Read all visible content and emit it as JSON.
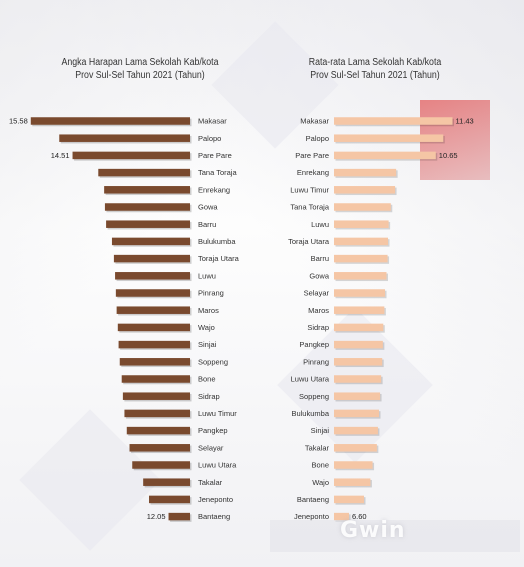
{
  "colors": {
    "left_bar": "#7a4a2e",
    "right_bar": "#f5c6a5",
    "text": "#333333"
  },
  "chart_data": [
    {
      "type": "bar",
      "orientation": "horizontal",
      "title_line1": "Angka Harapan Lama Sekolah Kab/kota",
      "title_line2": "Prov Sul-Sel Tahun 2021 (Tahun)",
      "categories": [
        "Makasar",
        "Palopo",
        "Pare Pare",
        "Tana Toraja",
        "Enrekang",
        "Gowa",
        "Barru",
        "Bulukumba",
        "Toraja Utara",
        "Luwu",
        "Pinrang",
        "Maros",
        "Wajo",
        "Sinjai",
        "Soppeng",
        "Bone",
        "Sidrap",
        "Luwu Timur",
        "Pangkep",
        "Selayar",
        "Luwu Utara",
        "Takalar",
        "Jeneponto",
        "Bantaeng"
      ],
      "values": [
        15.58,
        14.85,
        14.51,
        13.85,
        13.7,
        13.68,
        13.65,
        13.5,
        13.45,
        13.42,
        13.4,
        13.38,
        13.35,
        13.33,
        13.3,
        13.25,
        13.22,
        13.18,
        13.12,
        13.05,
        12.98,
        12.7,
        12.55,
        12.05
      ],
      "data_labels": {
        "Makasar": "15.58",
        "Pare Pare": "14.51",
        "Bantaeng": "12.05"
      },
      "xlim": [
        11.5,
        15.6
      ]
    },
    {
      "type": "bar",
      "orientation": "horizontal",
      "title_line1": "Rata-rata Lama Sekolah Kab/kota",
      "title_line2": "Prov Sul-Sel Tahun 2021 (Tahun)",
      "categories": [
        "Makasar",
        "Palopo",
        "Pare Pare",
        "Enrekang",
        "Luwu Timur",
        "Tana Toraja",
        "Luwu",
        "Toraja Utara",
        "Barru",
        "Gowa",
        "Selayar",
        "Maros",
        "Sidrap",
        "Pangkep",
        "Pinrang",
        "Luwu Utara",
        "Soppeng",
        "Bulukumba",
        "Sinjai",
        "Takalar",
        "Bone",
        "Wajo",
        "Bantaeng",
        "Jeneponto"
      ],
      "values": [
        11.43,
        11.0,
        10.65,
        8.8,
        8.75,
        8.55,
        8.45,
        8.42,
        8.4,
        8.35,
        8.28,
        8.25,
        8.2,
        8.18,
        8.15,
        8.1,
        8.05,
        8.0,
        7.95,
        7.9,
        7.7,
        7.6,
        7.3,
        6.6
      ],
      "data_labels": {
        "Makasar": "11.43",
        "Pare Pare": "10.65",
        "Jeneponto": "6.60"
      },
      "xlim": [
        5.9,
        11.5
      ]
    }
  ],
  "watermark": "Gwin"
}
